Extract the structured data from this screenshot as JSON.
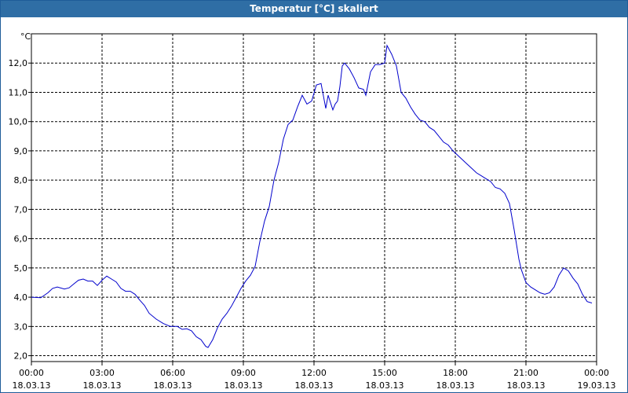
{
  "window": {
    "title": "Temperatur [°C] skaliert"
  },
  "chart_data": {
    "type": "line",
    "title": "Temperatur [°C] skaliert",
    "unit_label": "°C",
    "ylim": [
      1.8,
      13.0
    ],
    "yticks": [
      2.0,
      3.0,
      4.0,
      5.0,
      6.0,
      7.0,
      8.0,
      9.0,
      10.0,
      11.0,
      12.0
    ],
    "ytick_labels": [
      "2,0",
      "3,0",
      "4,0",
      "5,0",
      "6,0",
      "7,0",
      "8,0",
      "9,0",
      "10,0",
      "11,0",
      "12,0"
    ],
    "xlim": [
      0,
      24
    ],
    "xticks": [
      0,
      3,
      6,
      9,
      12,
      15,
      18,
      21,
      24
    ],
    "xtick_labels": [
      [
        "00:00",
        "18.03.13"
      ],
      [
        "03:00",
        "18.03.13"
      ],
      [
        "06:00",
        "18.03.13"
      ],
      [
        "09:00",
        "18.03.13"
      ],
      [
        "12:00",
        "18.03.13"
      ],
      [
        "15:00",
        "18.03.13"
      ],
      [
        "18:00",
        "18.03.13"
      ],
      [
        "21:00",
        "18.03.13"
      ],
      [
        "00:00",
        "19.03.13"
      ]
    ],
    "grid": true,
    "series": [
      {
        "color": "#0000cc",
        "x": [
          0,
          0.4,
          0.7,
          0.9,
          1.1,
          1.4,
          1.6,
          1.8,
          2.0,
          2.2,
          2.4,
          2.6,
          2.8,
          3.0,
          3.2,
          3.4,
          3.6,
          3.8,
          4.0,
          4.2,
          4.4,
          4.6,
          4.8,
          5.0,
          5.3,
          5.6,
          5.9,
          6.2,
          6.4,
          6.6,
          6.8,
          7.0,
          7.2,
          7.4,
          7.5,
          7.7,
          7.9,
          8.1,
          8.3,
          8.5,
          8.7,
          8.9,
          9.1,
          9.3,
          9.5,
          9.7,
          9.9,
          10.1,
          10.3,
          10.5,
          10.7,
          10.9,
          11.1,
          11.3,
          11.5,
          11.7,
          11.9,
          12.1,
          12.3,
          12.5,
          12.6,
          12.8,
          12.9,
          13.0,
          13.1,
          13.2,
          13.3,
          13.5,
          13.7,
          13.9,
          14.1,
          14.2,
          14.4,
          14.6,
          14.8,
          15.0,
          15.1,
          15.3,
          15.5,
          15.7,
          15.9,
          16.1,
          16.3,
          16.5,
          16.7,
          16.9,
          17.1,
          17.3,
          17.5,
          17.7,
          17.9,
          18.1,
          18.3,
          18.5,
          18.7,
          18.9,
          19.1,
          19.3,
          19.5,
          19.7,
          19.9,
          20.1,
          20.3,
          20.5,
          20.7,
          20.8,
          21.0,
          21.2,
          21.4,
          21.6,
          21.8,
          22.0,
          22.2,
          22.4,
          22.6,
          22.8,
          23.0,
          23.2,
          23.4,
          23.6,
          23.8
        ],
        "y": [
          4.0,
          3.98,
          4.15,
          4.3,
          4.35,
          4.28,
          4.32,
          4.45,
          4.58,
          4.62,
          4.55,
          4.55,
          4.4,
          4.58,
          4.72,
          4.62,
          4.52,
          4.3,
          4.2,
          4.2,
          4.1,
          3.9,
          3.72,
          3.45,
          3.25,
          3.1,
          3.0,
          3.0,
          2.9,
          2.92,
          2.85,
          2.65,
          2.55,
          2.32,
          2.28,
          2.55,
          2.95,
          3.25,
          3.45,
          3.7,
          4.0,
          4.3,
          4.55,
          4.75,
          5.05,
          5.9,
          6.6,
          7.1,
          8.0,
          8.6,
          9.4,
          9.9,
          10.05,
          10.5,
          10.9,
          10.6,
          10.7,
          11.25,
          11.3,
          10.45,
          10.9,
          10.4,
          10.6,
          10.7,
          11.2,
          11.9,
          12.0,
          11.8,
          11.5,
          11.15,
          11.1,
          10.9,
          11.7,
          11.95,
          11.95,
          12.0,
          12.6,
          12.3,
          11.9,
          11.0,
          10.8,
          10.5,
          10.25,
          10.05,
          10.0,
          9.8,
          9.7,
          9.5,
          9.3,
          9.2,
          9.0,
          8.85,
          8.7,
          8.55,
          8.4,
          8.25,
          8.15,
          8.05,
          7.95,
          7.75,
          7.7,
          7.55,
          7.2,
          6.3,
          5.3,
          4.95,
          4.5,
          4.35,
          4.25,
          4.15,
          4.1,
          4.15,
          4.35,
          4.75,
          5.0,
          4.9,
          4.65,
          4.45,
          4.1,
          3.85,
          3.8
        ]
      }
    ]
  }
}
